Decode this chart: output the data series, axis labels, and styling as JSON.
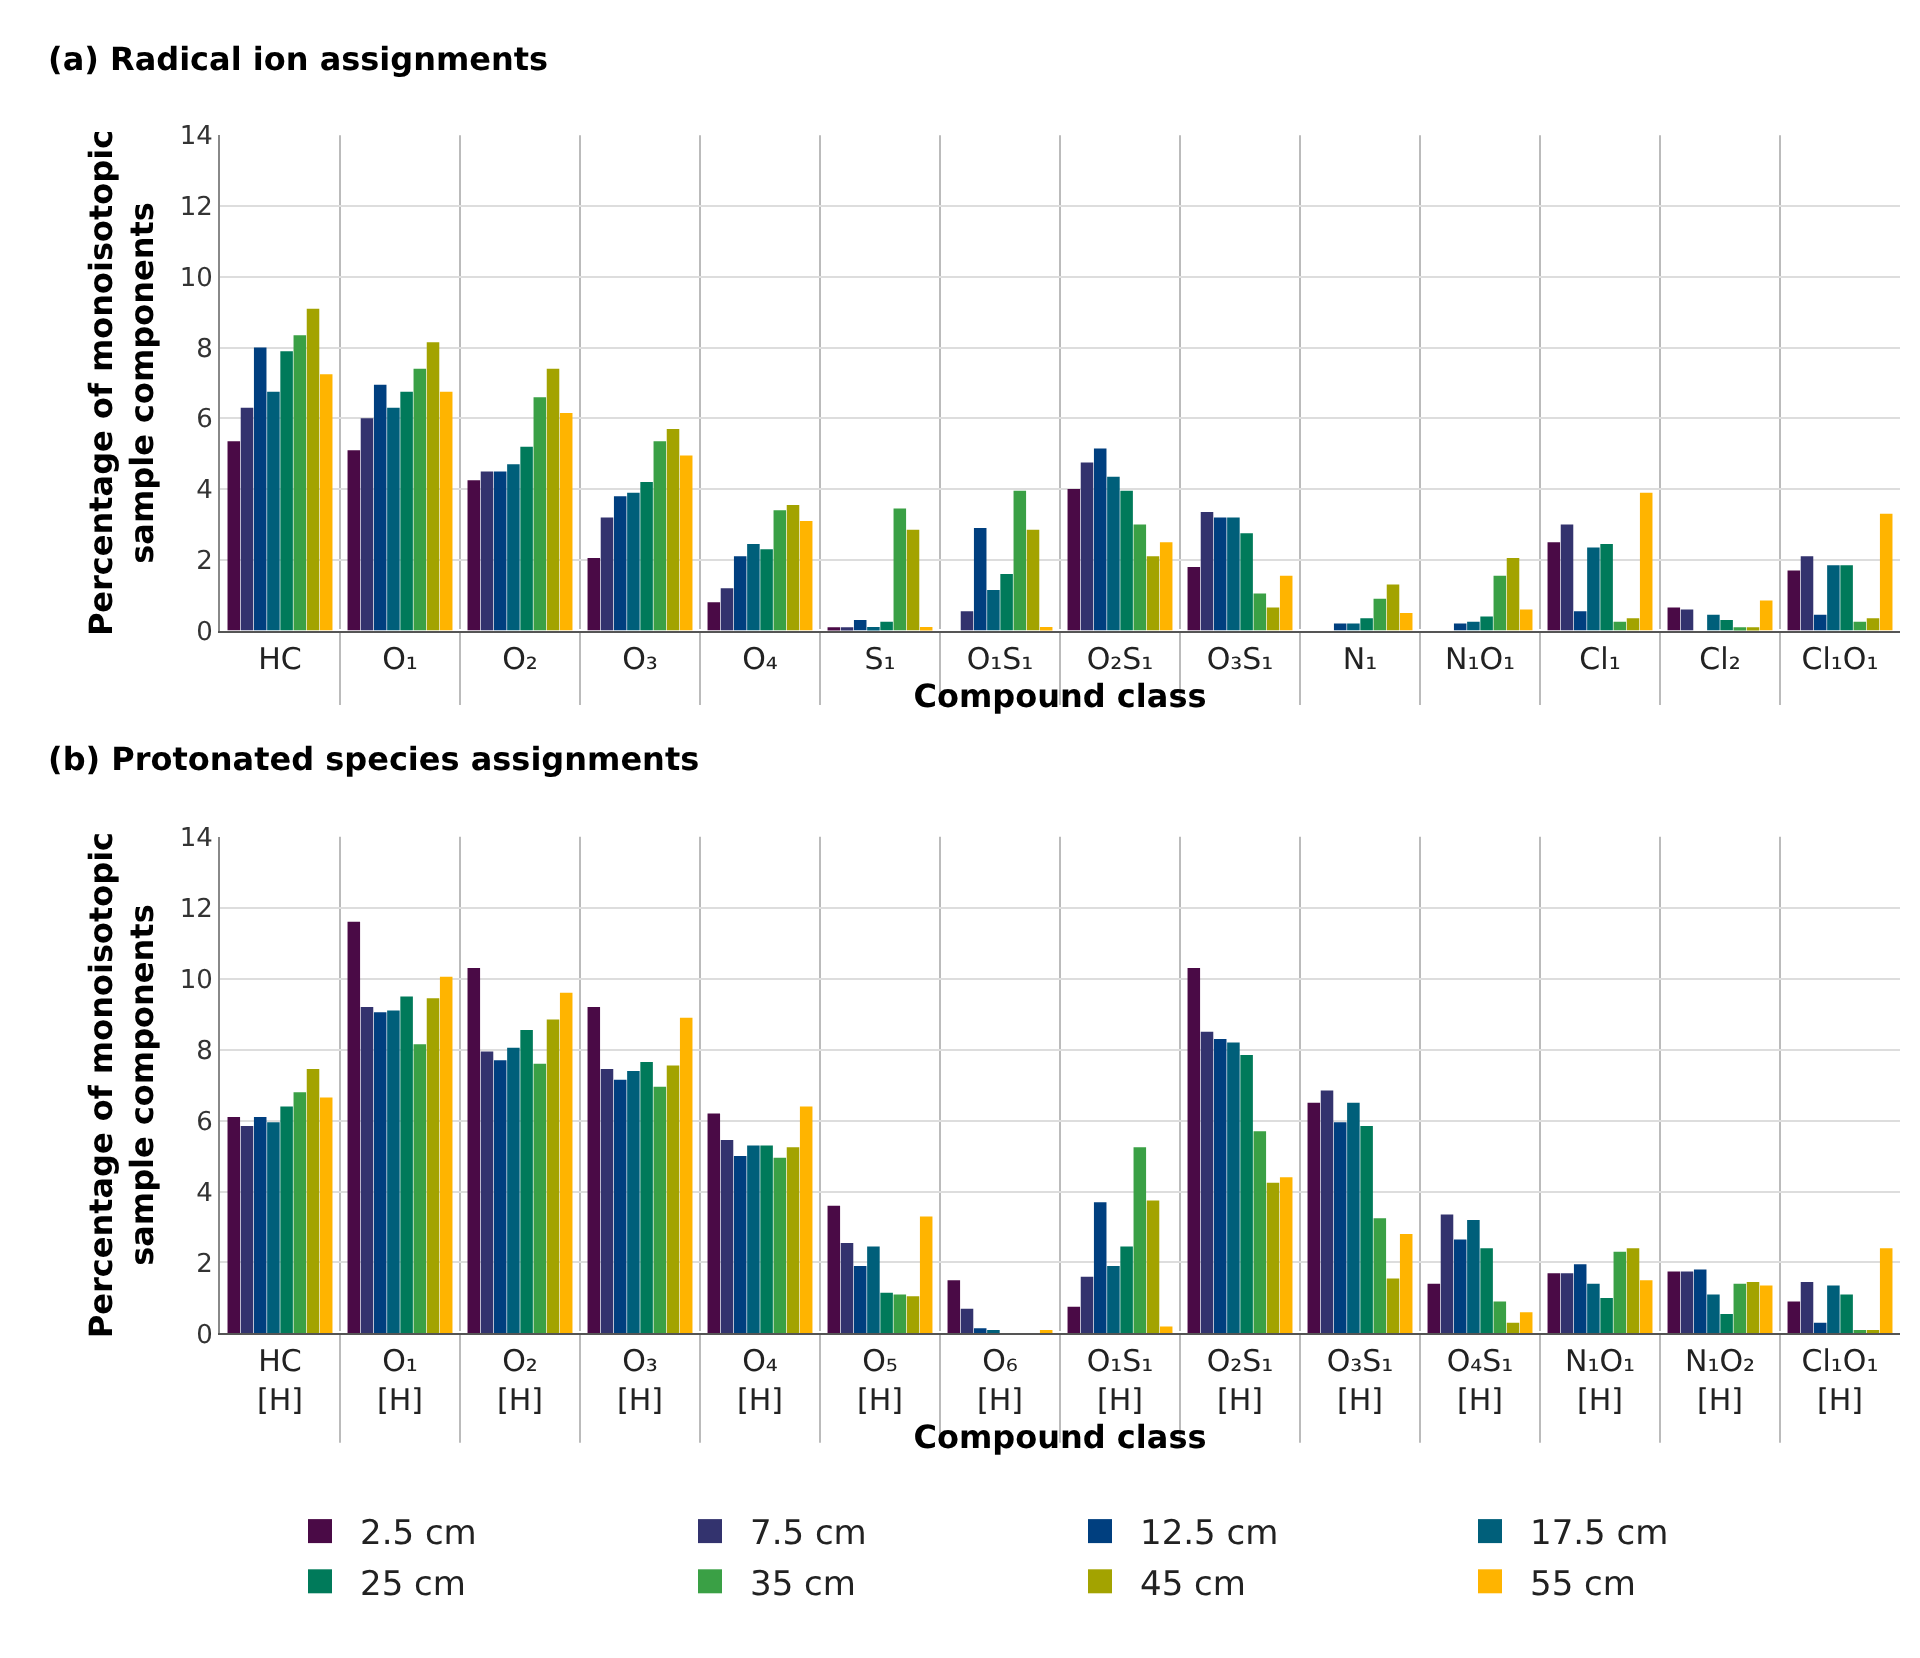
{
  "chart_data": [
    {
      "type": "bar",
      "title": "(a) Radical ion assignments",
      "xlabel": "Compound class",
      "ylabel": "Percentage of monoisotopic\nsample components",
      "categories": [
        "HC",
        "O₁",
        "O₂",
        "O₃",
        "O₄",
        "S₁",
        "O₁S₁",
        "O₂S₁",
        "O₃S₁",
        "N₁",
        "N₁O₁",
        "Cl₁",
        "Cl₂",
        "Cl₁O₁"
      ],
      "ylim": [
        0,
        14
      ],
      "yticks": [
        0,
        2,
        4,
        6,
        8,
        10,
        12,
        14
      ],
      "grid": true,
      "legend": "bottom",
      "series": [
        {
          "name": "2.5 cm",
          "color": "#4a0a46",
          "values": [
            5.35,
            5.1,
            4.25,
            2.05,
            0.8,
            0.05,
            null,
            4.0,
            1.8,
            null,
            null,
            2.5,
            0.65,
            1.7
          ]
        },
        {
          "name": "7.5 cm",
          "color": "#33336e",
          "values": [
            6.3,
            6.0,
            4.5,
            3.2,
            1.2,
            0.05,
            0.55,
            4.75,
            3.35,
            null,
            null,
            3.0,
            0.6,
            2.1
          ]
        },
        {
          "name": "12.5 cm",
          "color": "#003f7f",
          "values": [
            8.0,
            6.95,
            4.5,
            3.8,
            2.1,
            0.3,
            2.9,
            5.15,
            3.2,
            0.2,
            0.2,
            0.55,
            null,
            0.45
          ]
        },
        {
          "name": "17.5 cm",
          "color": "#005f7a",
          "values": [
            6.75,
            6.3,
            4.7,
            3.9,
            2.45,
            0.1,
            1.15,
            4.35,
            3.2,
            0.2,
            0.25,
            2.35,
            0.45,
            1.85
          ]
        },
        {
          "name": "25 cm",
          "color": "#007a5a",
          "values": [
            7.9,
            6.75,
            5.2,
            4.2,
            2.3,
            0.25,
            1.6,
            3.95,
            2.75,
            0.35,
            0.4,
            2.45,
            0.3,
            1.85
          ]
        },
        {
          "name": "35 cm",
          "color": "#3aa045",
          "values": [
            8.35,
            7.4,
            6.6,
            5.35,
            3.4,
            3.45,
            3.95,
            3.0,
            1.05,
            0.9,
            1.55,
            0.25,
            0.05,
            0.25
          ]
        },
        {
          "name": "45 cm",
          "color": "#a3a300",
          "values": [
            9.1,
            8.15,
            7.4,
            5.7,
            3.55,
            2.85,
            2.85,
            2.1,
            0.65,
            1.3,
            2.05,
            0.35,
            0.05,
            0.35
          ]
        },
        {
          "name": "55 cm",
          "color": "#ffb400",
          "values": [
            7.25,
            6.75,
            6.15,
            4.95,
            3.1,
            0.1,
            0.1,
            2.5,
            1.55,
            0.5,
            0.6,
            3.9,
            0.85,
            3.3
          ]
        }
      ]
    },
    {
      "type": "bar",
      "title": "(b) Protonated species assignments",
      "xlabel": "Compound class",
      "ylabel": "Percentage of monoisotopic\nsample components",
      "categories": [
        "HC\n[H]",
        "O₁\n[H]",
        "O₂\n[H]",
        "O₃\n[H]",
        "O₄\n[H]",
        "O₅\n[H]",
        "O₆\n[H]",
        "O₁S₁\n[H]",
        "O₂S₁\n[H]",
        "O₃S₁\n[H]",
        "O₄S₁\n[H]",
        "N₁O₁\n[H]",
        "N₁O₂\n[H]",
        "Cl₁O₁\n[H]"
      ],
      "ylim": [
        0,
        14
      ],
      "yticks": [
        0,
        2,
        4,
        6,
        8,
        10,
        12,
        14
      ],
      "grid": true,
      "series": [
        {
          "color": "#4a0a46",
          "values": [
            6.1,
            11.6,
            10.3,
            9.2,
            6.2,
            3.6,
            1.5,
            0.75,
            10.3,
            6.5,
            1.4,
            1.7,
            1.75,
            0.9
          ]
        },
        {
          "color": "#33336e",
          "values": [
            5.85,
            9.2,
            7.95,
            7.45,
            5.45,
            2.55,
            0.7,
            1.6,
            8.5,
            6.85,
            3.35,
            1.7,
            1.75,
            1.45
          ]
        },
        {
          "color": "#003f7f",
          "values": [
            6.1,
            9.05,
            7.7,
            7.15,
            5.0,
            1.9,
            0.15,
            3.7,
            8.3,
            5.95,
            2.65,
            1.95,
            1.8,
            0.3
          ]
        },
        {
          "color": "#005f7a",
          "values": [
            5.95,
            9.1,
            8.05,
            7.4,
            5.3,
            2.45,
            0.1,
            1.9,
            8.2,
            6.5,
            3.2,
            1.4,
            1.1,
            1.35
          ]
        },
        {
          "color": "#007a5a",
          "values": [
            6.4,
            9.5,
            8.55,
            7.65,
            5.3,
            1.15,
            null,
            2.45,
            7.85,
            5.85,
            2.4,
            1.0,
            0.55,
            1.1
          ]
        },
        {
          "color": "#3aa045",
          "values": [
            6.8,
            8.15,
            7.6,
            6.95,
            4.95,
            1.1,
            null,
            5.25,
            5.7,
            3.25,
            0.9,
            2.3,
            1.4,
            0.1
          ]
        },
        {
          "color": "#a3a300",
          "values": [
            7.45,
            9.45,
            8.85,
            7.55,
            5.25,
            1.05,
            null,
            3.75,
            4.25,
            1.55,
            0.3,
            2.4,
            1.45,
            0.1
          ]
        },
        {
          "color": "#ffb400",
          "values": [
            6.65,
            10.05,
            9.6,
            8.9,
            6.4,
            3.3,
            0.1,
            0.2,
            4.4,
            2.8,
            0.6,
            1.5,
            1.35,
            2.4
          ]
        }
      ]
    }
  ]
}
